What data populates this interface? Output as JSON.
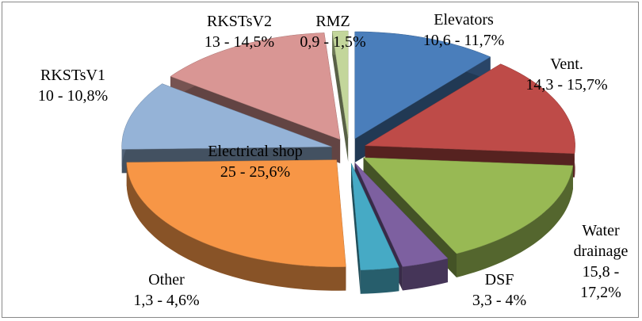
{
  "chart_data": {
    "type": "pie3d",
    "categories": [
      "Elevators",
      "Vent.",
      "Water drainage",
      "DSF",
      "Other",
      "Electrical shop",
      "RKSTsV1",
      "RKSTsV2",
      "RMZ"
    ],
    "series": [
      {
        "low": [
          10.6,
          14.3,
          15.8,
          3.3,
          1.3,
          25,
          10,
          13,
          0.9
        ],
        "high": [
          11.7,
          15.7,
          17.2,
          4,
          4.6,
          25.6,
          10.8,
          14.5,
          1.5
        ],
        "value_labels": [
          "10,6 - 11,7%",
          "14,3 - 15,7%",
          "15,8 - 17,2%",
          "3,3 - 4%",
          "1,3 - 4,6%",
          "25 - 25,6%",
          "10 - 10,8%",
          "13 - 14,5%",
          "0,9 - 1,5%"
        ],
        "colors": [
          "#4a7ebb",
          "#be4b48",
          "#98b954",
          "#7d60a0",
          "#46aac5",
          "#f79646",
          "#95b3d7",
          "#d99694",
          "#c3d69b"
        ]
      }
    ]
  }
}
